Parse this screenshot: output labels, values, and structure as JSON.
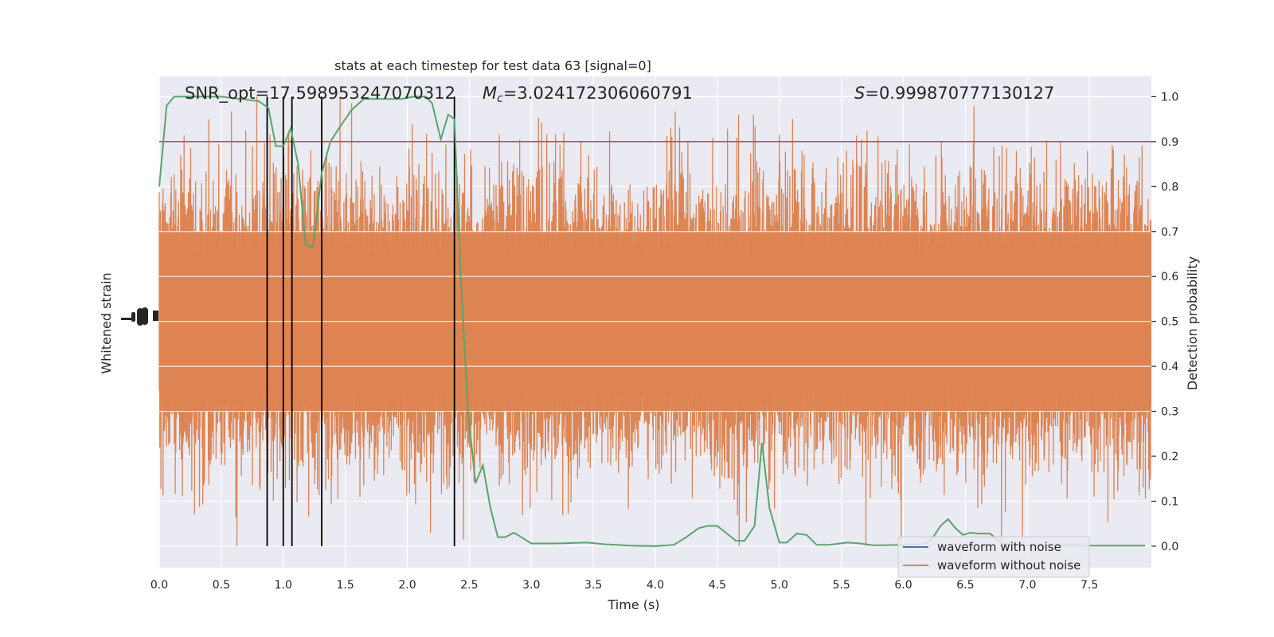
{
  "chart_data": {
    "type": "line",
    "title": "stats at each timestep for test data 63 [signal=0]",
    "xlabel": "Time (s)",
    "ylabel_left": "Whitened strain",
    "ylabel_right": "Detection probability",
    "xlim": [
      0,
      8
    ],
    "ylim_right": [
      -0.048,
      1.045
    ],
    "x_ticks": [
      0.0,
      0.5,
      1.0,
      1.5,
      2.0,
      2.5,
      3.0,
      3.5,
      4.0,
      4.5,
      5.0,
      5.5,
      6.0,
      6.5,
      7.0,
      7.5
    ],
    "x_tick_labels": [
      "0.0",
      "0.5",
      "1.0",
      "1.5",
      "2.0",
      "2.5",
      "3.0",
      "3.5",
      "4.0",
      "4.5",
      "5.0",
      "5.5",
      "6.0",
      "6.5",
      "7.0",
      "7.5"
    ],
    "y_ticks_right": [
      0.0,
      0.1,
      0.2,
      0.3,
      0.4,
      0.5,
      0.6,
      0.7,
      0.8,
      0.9,
      1.0
    ],
    "y_tick_labels_right": [
      "0.0",
      "0.1",
      "0.2",
      "0.3",
      "0.4",
      "0.5",
      "0.6",
      "0.7",
      "0.8",
      "0.9",
      "1.0"
    ],
    "grid": true,
    "legend_placement": "lower-right",
    "annotations": {
      "snr": "SNR_opt=17.598953247070312",
      "mc_symbol": "M",
      "mc_subscript": "c",
      "mc_value": "=3.024172306060791",
      "s_symbol": "S",
      "s_value": "=0.999870777130127"
    },
    "threshold": {
      "y": 0.9,
      "color": "#c44e52"
    },
    "vertical_lines_x": [
      0.87,
      1.0,
      1.07,
      1.31,
      2.38
    ],
    "series": [
      {
        "name": "waveform with noise",
        "color": "#4c72b0"
      },
      {
        "name": "waveform without noise",
        "color": "#dd8452",
        "band_center": 0.5,
        "band_typical_range": [
          0.3,
          0.7
        ],
        "band_extremes": [
          0.0,
          1.0
        ]
      }
    ],
    "probability": {
      "color": "#55a868",
      "x": [
        0.0,
        0.06,
        0.12,
        0.25,
        0.5,
        0.65,
        0.8,
        0.88,
        0.94,
        1.0,
        1.06,
        1.12,
        1.18,
        1.24,
        1.31,
        1.38,
        1.45,
        1.55,
        1.65,
        1.8,
        1.95,
        2.05,
        2.15,
        2.2,
        2.27,
        2.33,
        2.38,
        2.43,
        2.49,
        2.55,
        2.61,
        2.67,
        2.73,
        2.79,
        2.86,
        2.92,
        3.0,
        3.2,
        3.45,
        3.6,
        3.8,
        4.0,
        4.15,
        4.25,
        4.35,
        4.42,
        4.5,
        4.65,
        4.72,
        4.8,
        4.86,
        4.92,
        5.0,
        5.06,
        5.14,
        5.22,
        5.3,
        5.4,
        5.55,
        5.65,
        5.75,
        5.85,
        6.0,
        6.1,
        6.18,
        6.24,
        6.3,
        6.36,
        6.42,
        6.48,
        6.54,
        6.6,
        6.7,
        6.8,
        6.9,
        7.0,
        7.2,
        7.5,
        7.8,
        7.95
      ],
      "y": [
        0.8,
        0.98,
        1.0,
        1.0,
        1.0,
        0.995,
        0.99,
        0.975,
        0.89,
        0.89,
        0.93,
        0.85,
        0.67,
        0.665,
        0.83,
        0.9,
        0.93,
        0.97,
        0.995,
        0.995,
        0.995,
        1.0,
        1.0,
        0.985,
        0.905,
        0.96,
        0.95,
        0.6,
        0.3,
        0.14,
        0.18,
        0.085,
        0.02,
        0.02,
        0.03,
        0.02,
        0.006,
        0.006,
        0.008,
        0.004,
        0.001,
        0.0,
        0.003,
        0.02,
        0.04,
        0.045,
        0.045,
        0.012,
        0.012,
        0.045,
        0.23,
        0.085,
        0.008,
        0.008,
        0.028,
        0.025,
        0.003,
        0.003,
        0.008,
        0.006,
        0.002,
        0.002,
        0.003,
        0.002,
        0.006,
        0.02,
        0.045,
        0.06,
        0.04,
        0.025,
        0.03,
        0.028,
        0.028,
        0.005,
        0.003,
        0.002,
        0.002,
        0.001,
        0.001,
        0.001
      ]
    }
  }
}
